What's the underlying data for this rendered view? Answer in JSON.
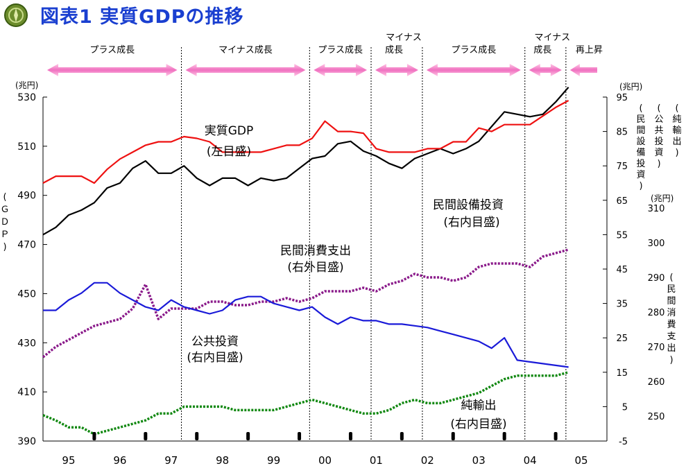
{
  "title": "図表1 実質GDPの推移",
  "logo_icon": "green-emblem-icon",
  "chart_data": {
    "type": "line",
    "x": [
      "95",
      "96",
      "97",
      "98",
      "99",
      "00",
      "01",
      "02",
      "03",
      "04",
      "05"
    ],
    "left_axis": {
      "unit": "(兆円)",
      "label": "(ＧＤＰ)",
      "ylim": [
        390,
        530
      ],
      "ticks": [
        "530",
        "510",
        "490",
        "470",
        "450",
        "430",
        "410",
        "390"
      ]
    },
    "right_inner_axis": {
      "unit": "(兆円)",
      "labels": [
        "(民間設備投資)",
        "(公共投資)",
        "(純輸出)"
      ],
      "ylim": [
        -5,
        95
      ],
      "ticks": [
        "95",
        "85",
        "75",
        "65",
        "55",
        "45",
        "35",
        "25",
        "15",
        "5",
        "-5"
      ]
    },
    "right_outer_axis": {
      "unit": "(兆円)",
      "label": "(民間消費支出)",
      "ylim": [
        250,
        310
      ],
      "ticks": [
        "310",
        "300",
        "290",
        "280",
        "270",
        "260",
        "250"
      ]
    },
    "phases": [
      {
        "label": "プラス成長",
        "from": 1995.0,
        "to": 1997.7
      },
      {
        "label": "マイナス成長",
        "from": 1997.7,
        "to": 2000.2
      },
      {
        "label": "プラス成長",
        "from": 2000.2,
        "to": 2001.4
      },
      {
        "label": "マイナス",
        "label2": "成長",
        "from": 2001.4,
        "to": 2002.4
      },
      {
        "label": "プラス成長",
        "from": 2002.4,
        "to": 2004.4
      },
      {
        "label": "マイナス",
        "label2": "成長",
        "from": 2004.4,
        "to": 2005.2
      },
      {
        "label": "再上昇",
        "from": 2005.2,
        "to": 2006.0
      }
    ],
    "phase_boundaries": [
      1997.7,
      2000.2,
      2001.4,
      2002.4,
      2004.4,
      2005.2
    ],
    "series": [
      {
        "name": "実質GDP",
        "name_note": "(左目盛)",
        "axis": "left",
        "color": "#000000",
        "style": "solid",
        "points": [
          [
            1995.0,
            474
          ],
          [
            1995.25,
            477
          ],
          [
            1995.5,
            482
          ],
          [
            1995.75,
            484
          ],
          [
            1996.0,
            487
          ],
          [
            1996.25,
            493
          ],
          [
            1996.5,
            495
          ],
          [
            1996.75,
            501
          ],
          [
            1997.0,
            504
          ],
          [
            1997.25,
            499
          ],
          [
            1997.5,
            499
          ],
          [
            1997.75,
            502
          ],
          [
            1998.0,
            497
          ],
          [
            1998.25,
            494
          ],
          [
            1998.5,
            497
          ],
          [
            1998.75,
            497
          ],
          [
            1999.0,
            494
          ],
          [
            1999.25,
            497
          ],
          [
            1999.5,
            496
          ],
          [
            1999.75,
            497
          ],
          [
            2000.0,
            501
          ],
          [
            2000.25,
            505
          ],
          [
            2000.5,
            506
          ],
          [
            2000.75,
            511
          ],
          [
            2001.0,
            512
          ],
          [
            2001.25,
            508
          ],
          [
            2001.5,
            506
          ],
          [
            2001.75,
            503
          ],
          [
            2002.0,
            501
          ],
          [
            2002.25,
            505
          ],
          [
            2002.5,
            507
          ],
          [
            2002.75,
            509
          ],
          [
            2003.0,
            507
          ],
          [
            2003.25,
            509
          ],
          [
            2003.5,
            512
          ],
          [
            2003.75,
            518
          ],
          [
            2004.0,
            524
          ],
          [
            2004.25,
            523
          ],
          [
            2004.5,
            522
          ],
          [
            2004.75,
            523
          ],
          [
            2005.0,
            528
          ],
          [
            2005.25,
            534
          ]
        ]
      },
      {
        "name": "民間設備投資",
        "name_note": "(右内目盛)",
        "axis": "right_inner",
        "color": "#ee1111",
        "style": "solid",
        "points": [
          [
            1995.0,
            70
          ],
          [
            1995.25,
            72
          ],
          [
            1995.5,
            72
          ],
          [
            1995.75,
            72
          ],
          [
            1996.0,
            70
          ],
          [
            1996.25,
            74
          ],
          [
            1996.5,
            77
          ],
          [
            1996.75,
            79
          ],
          [
            1997.0,
            81
          ],
          [
            1997.25,
            82
          ],
          [
            1997.5,
            82
          ],
          [
            1997.75,
            83.5
          ],
          [
            1998.0,
            83
          ],
          [
            1998.25,
            82
          ],
          [
            1998.5,
            79
          ],
          [
            1998.75,
            79
          ],
          [
            1999.0,
            79
          ],
          [
            1999.25,
            79
          ],
          [
            1999.5,
            80
          ],
          [
            1999.75,
            81
          ],
          [
            2000.0,
            81
          ],
          [
            2000.25,
            83
          ],
          [
            2000.5,
            88
          ],
          [
            2000.75,
            85
          ],
          [
            2001.0,
            85
          ],
          [
            2001.25,
            84.5
          ],
          [
            2001.5,
            80
          ],
          [
            2001.75,
            79
          ],
          [
            2002.0,
            79
          ],
          [
            2002.25,
            79
          ],
          [
            2002.5,
            80
          ],
          [
            2002.75,
            80
          ],
          [
            2003.0,
            82
          ],
          [
            2003.25,
            82
          ],
          [
            2003.5,
            86
          ],
          [
            2003.75,
            85
          ],
          [
            2004.0,
            87
          ],
          [
            2004.25,
            87
          ],
          [
            2004.5,
            87
          ],
          [
            2004.75,
            89.5
          ],
          [
            2005.0,
            92
          ],
          [
            2005.25,
            94
          ]
        ]
      },
      {
        "name": "民間消費支出",
        "name_note": "(右外目盛)",
        "axis": "right_outer",
        "color": "#8a1a8a",
        "style": "dotted",
        "points": [
          [
            1995.0,
            267
          ],
          [
            1995.25,
            270
          ],
          [
            1995.5,
            272
          ],
          [
            1995.75,
            274
          ],
          [
            1996.0,
            276
          ],
          [
            1996.25,
            277
          ],
          [
            1996.5,
            278
          ],
          [
            1996.75,
            281
          ],
          [
            1997.0,
            288
          ],
          [
            1997.25,
            278
          ],
          [
            1997.5,
            281
          ],
          [
            1997.75,
            281
          ],
          [
            1998.0,
            281
          ],
          [
            1998.25,
            283
          ],
          [
            1998.5,
            283
          ],
          [
            1998.75,
            282
          ],
          [
            1999.0,
            282
          ],
          [
            1999.25,
            283
          ],
          [
            1999.5,
            283
          ],
          [
            1999.75,
            284
          ],
          [
            2000.0,
            283
          ],
          [
            2000.25,
            284
          ],
          [
            2000.5,
            286
          ],
          [
            2000.75,
            286
          ],
          [
            2001.0,
            286
          ],
          [
            2001.25,
            287
          ],
          [
            2001.5,
            286
          ],
          [
            2001.75,
            288
          ],
          [
            2002.0,
            289
          ],
          [
            2002.25,
            291
          ],
          [
            2002.5,
            290
          ],
          [
            2002.75,
            290
          ],
          [
            2003.0,
            289
          ],
          [
            2003.25,
            290
          ],
          [
            2003.5,
            293
          ],
          [
            2003.75,
            294
          ],
          [
            2004.0,
            294
          ],
          [
            2004.25,
            294
          ],
          [
            2004.5,
            293
          ],
          [
            2004.75,
            296
          ],
          [
            2005.0,
            297
          ],
          [
            2005.25,
            298
          ]
        ]
      },
      {
        "name": "公共投資",
        "name_note": "(右内目盛)",
        "axis": "right_inner",
        "color": "#1a1ad8",
        "style": "solid",
        "points": [
          [
            1995.0,
            33
          ],
          [
            1995.25,
            33
          ],
          [
            1995.5,
            36
          ],
          [
            1995.75,
            38
          ],
          [
            1996.0,
            41
          ],
          [
            1996.25,
            41
          ],
          [
            1996.5,
            38
          ],
          [
            1996.75,
            36
          ],
          [
            1997.0,
            34
          ],
          [
            1997.25,
            33
          ],
          [
            1997.5,
            36
          ],
          [
            1997.75,
            34
          ],
          [
            1998.0,
            33
          ],
          [
            1998.25,
            32
          ],
          [
            1998.5,
            33
          ],
          [
            1998.75,
            36
          ],
          [
            1999.0,
            37
          ],
          [
            1999.25,
            37
          ],
          [
            1999.5,
            35
          ],
          [
            1999.75,
            34
          ],
          [
            2000.0,
            33
          ],
          [
            2000.25,
            34
          ],
          [
            2000.5,
            31
          ],
          [
            2000.75,
            29
          ],
          [
            2001.0,
            31
          ],
          [
            2001.25,
            30
          ],
          [
            2001.5,
            30
          ],
          [
            2001.75,
            29
          ],
          [
            2002.0,
            29
          ],
          [
            2002.25,
            28.5
          ],
          [
            2002.5,
            28
          ],
          [
            2002.75,
            27
          ],
          [
            2003.0,
            26
          ],
          [
            2003.25,
            25
          ],
          [
            2003.5,
            24
          ],
          [
            2003.75,
            22
          ],
          [
            2004.0,
            25
          ],
          [
            2004.25,
            18.5
          ],
          [
            2004.5,
            18
          ],
          [
            2004.75,
            17.5
          ],
          [
            2005.0,
            17
          ],
          [
            2005.25,
            16.5
          ]
        ]
      },
      {
        "name": "純輸出",
        "name_note": "(右内目盛)",
        "axis": "right_inner",
        "color": "#118811",
        "style": "dotted",
        "points": [
          [
            1995.0,
            2.5
          ],
          [
            1995.25,
            1
          ],
          [
            1995.5,
            -1
          ],
          [
            1995.75,
            -1
          ],
          [
            1996.0,
            -3
          ],
          [
            1996.25,
            -2
          ],
          [
            1996.5,
            -1
          ],
          [
            1996.75,
            0
          ],
          [
            1997.0,
            1
          ],
          [
            1997.25,
            3
          ],
          [
            1997.5,
            3
          ],
          [
            1997.75,
            5
          ],
          [
            1998.0,
            5
          ],
          [
            1998.25,
            5
          ],
          [
            1998.5,
            5
          ],
          [
            1998.75,
            4
          ],
          [
            1999.0,
            4
          ],
          [
            1999.25,
            4
          ],
          [
            1999.5,
            4
          ],
          [
            1999.75,
            5
          ],
          [
            2000.0,
            6
          ],
          [
            2000.25,
            7
          ],
          [
            2000.5,
            6
          ],
          [
            2000.75,
            5
          ],
          [
            2001.0,
            4
          ],
          [
            2001.25,
            3
          ],
          [
            2001.5,
            3
          ],
          [
            2001.75,
            4
          ],
          [
            2002.0,
            6
          ],
          [
            2002.25,
            7
          ],
          [
            2002.5,
            6
          ],
          [
            2002.75,
            6
          ],
          [
            2003.0,
            7
          ],
          [
            2003.25,
            8
          ],
          [
            2003.5,
            9
          ],
          [
            2003.75,
            11
          ],
          [
            2004.0,
            13
          ],
          [
            2004.25,
            14
          ],
          [
            2004.5,
            14
          ],
          [
            2004.75,
            14
          ],
          [
            2005.0,
            14
          ],
          [
            2005.25,
            15
          ]
        ]
      }
    ],
    "annotations": [
      {
        "text": "実質GDP",
        "text2": "(左目盛)"
      },
      {
        "text": "民間設備投資",
        "text2": "(右内目盛)"
      },
      {
        "text": "民間消費支出",
        "text2": "(右外目盛)"
      },
      {
        "text": "公共投資",
        "text2": "(右内目盛)"
      },
      {
        "text": "純輸出",
        "text2": "(右内目盛)"
      }
    ],
    "grid": false,
    "legend": "none"
  }
}
